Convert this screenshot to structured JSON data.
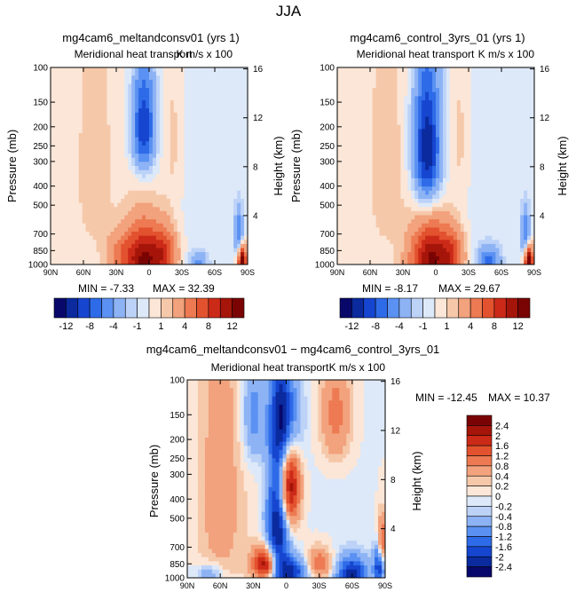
{
  "figure": {
    "title": "JJA"
  },
  "colors": {
    "scale": [
      "#08086b",
      "#0a2a9e",
      "#1646d0",
      "#2e6be8",
      "#5a91f2",
      "#8db3f5",
      "#bcd2f7",
      "#dde9f9",
      "#fbe6d7",
      "#f6c8aa",
      "#f2a27c",
      "#ed7a52",
      "#e3522f",
      "#cc2a18",
      "#a51509",
      "#7a0404"
    ]
  },
  "chart_data": [
    {
      "type": "heatmap",
      "title": "mg4cam6_meltandconsv01 (yrs 1)",
      "subtitle": "Meridional heat transport",
      "units": "K m/s x 100",
      "ylabel": "Pressure (mb)",
      "y2label": "Height (km)",
      "x_ticks": [
        "90N",
        "60N",
        "30N",
        "0",
        "30S",
        "60S",
        "90S"
      ],
      "y_ticks": [
        "100",
        "150",
        "200",
        "250",
        "300",
        "400",
        "500",
        "700",
        "850",
        "1000"
      ],
      "y2_ticks": [
        "16",
        "12",
        "8",
        "4"
      ],
      "min_label": "MIN = -7.33",
      "max_label": "MAX = 32.39",
      "min": -7.33,
      "max": 32.39,
      "colorbar_labels": [
        "-12",
        "-8",
        "-4",
        "-1",
        "1",
        "4",
        "8",
        "12"
      ],
      "features": [
        {
          "lat": 5,
          "p": 200,
          "value": -10,
          "rlat": 10,
          "rp": 120
        },
        {
          "lat": -22,
          "p": 230,
          "value": 1.5,
          "rlat": 10,
          "rp": 250
        },
        {
          "lat": 50,
          "p": 350,
          "value": 1.5,
          "rlat": 14,
          "rp": 350
        },
        {
          "lat": 5,
          "p": 950,
          "value": 12,
          "rlat": 18,
          "rp": 350
        },
        {
          "lat": -15,
          "p": 880,
          "value": 6,
          "rlat": 12,
          "rp": 260
        },
        {
          "lat": 28,
          "p": 880,
          "value": 3,
          "rlat": 12,
          "rp": 200
        },
        {
          "lat": -45,
          "p": 980,
          "value": -4,
          "rlat": 8,
          "rp": 120
        },
        {
          "lat": -85,
          "p": 950,
          "value": 14,
          "rlat": 4,
          "rp": 150
        },
        {
          "lat": -82,
          "p": 700,
          "value": -6,
          "rlat": 4,
          "rp": 200
        }
      ]
    },
    {
      "type": "heatmap",
      "title": "mg4cam6_control_3yrs_01 (yrs 1)",
      "subtitle": "Meridional heat transport",
      "units": "K m/s x 100",
      "ylabel": "Pressure (mb)",
      "y2label": "Height (km)",
      "x_ticks": [
        "90N",
        "60N",
        "30N",
        "0",
        "30S",
        "60S",
        "90S"
      ],
      "y_ticks": [
        "100",
        "150",
        "200",
        "250",
        "300",
        "400",
        "500",
        "700",
        "850",
        "1000"
      ],
      "y2_ticks": [
        "16",
        "12",
        "8",
        "4"
      ],
      "min_label": "MIN = -8.17",
      "max_label": "MAX = 29.67",
      "min": -8.17,
      "max": 29.67,
      "colorbar_labels": [
        "-12",
        "-8",
        "-4",
        "-1",
        "1",
        "4",
        "8",
        "12"
      ],
      "features": [
        {
          "lat": 8,
          "p": 260,
          "value": -12,
          "rlat": 12,
          "rp": 200
        },
        {
          "lat": -22,
          "p": 220,
          "value": 1.5,
          "rlat": 10,
          "rp": 230
        },
        {
          "lat": 45,
          "p": 350,
          "value": 1.5,
          "rlat": 14,
          "rp": 350
        },
        {
          "lat": 5,
          "p": 950,
          "value": 12,
          "rlat": 18,
          "rp": 350
        },
        {
          "lat": -15,
          "p": 900,
          "value": 6,
          "rlat": 12,
          "rp": 260
        },
        {
          "lat": -48,
          "p": 960,
          "value": -6,
          "rlat": 10,
          "rp": 150
        },
        {
          "lat": -85,
          "p": 950,
          "value": 14,
          "rlat": 4,
          "rp": 150
        },
        {
          "lat": -82,
          "p": 700,
          "value": -6,
          "rlat": 4,
          "rp": 200
        }
      ]
    },
    {
      "type": "heatmap",
      "title": "mg4cam6_meltandconsv01 − mg4cam6_control_3yrs_01",
      "subtitle": "Meridional heat transport",
      "units": "K m/s x 100",
      "ylabel": "Pressure (mb)",
      "y2label": "Height (km)",
      "x_ticks": [
        "90N",
        "60N",
        "30N",
        "0",
        "30S",
        "60S",
        "90S"
      ],
      "y_ticks": [
        "100",
        "150",
        "200",
        "250",
        "300",
        "400",
        "500",
        "700",
        "850",
        "1000"
      ],
      "y2_ticks": [
        "16",
        "12",
        "8",
        "4"
      ],
      "min_label": "MIN = -12.45",
      "max_label": "MAX = 10.37",
      "min": -12.45,
      "max": 10.37,
      "colorbar_labels": [
        "2.4",
        "2",
        "1.6",
        "1.2",
        "0.8",
        "0.4",
        "0.2",
        "0",
        "-0.2",
        "-0.4",
        "-0.8",
        "-1.2",
        "-1.6",
        "-2",
        "-2.4"
      ],
      "features": [
        {
          "lat": 0,
          "p": 160,
          "value": -2.6,
          "rlat": 12,
          "rp": 100
        },
        {
          "lat": -3,
          "p": 330,
          "value": 2.6,
          "rlat": 9,
          "rp": 200
        },
        {
          "lat": 8,
          "p": 600,
          "value": -2.6,
          "rlat": 10,
          "rp": 450
        },
        {
          "lat": 18,
          "p": 850,
          "value": 2.6,
          "rlat": 12,
          "rp": 160
        },
        {
          "lat": -5,
          "p": 930,
          "value": -2.0,
          "rlat": 14,
          "rp": 150
        },
        {
          "lat": -30,
          "p": 850,
          "value": 1.2,
          "rlat": 12,
          "rp": 150
        },
        {
          "lat": 60,
          "p": 400,
          "value": 0.6,
          "rlat": 20,
          "rp": 600
        },
        {
          "lat": -45,
          "p": 150,
          "value": 1.0,
          "rlat": 14,
          "rp": 100
        },
        {
          "lat": 30,
          "p": 150,
          "value": -1.0,
          "rlat": 10,
          "rp": 100
        },
        {
          "lat": -60,
          "p": 950,
          "value": -2.2,
          "rlat": 14,
          "rp": 180
        },
        {
          "lat": -87,
          "p": 700,
          "value": 2.0,
          "rlat": 4,
          "rp": 200
        },
        {
          "lat": -85,
          "p": 850,
          "value": -2.4,
          "rlat": 5,
          "rp": 200
        },
        {
          "lat": 70,
          "p": 950,
          "value": -0.8,
          "rlat": 12,
          "rp": 100
        }
      ]
    }
  ]
}
